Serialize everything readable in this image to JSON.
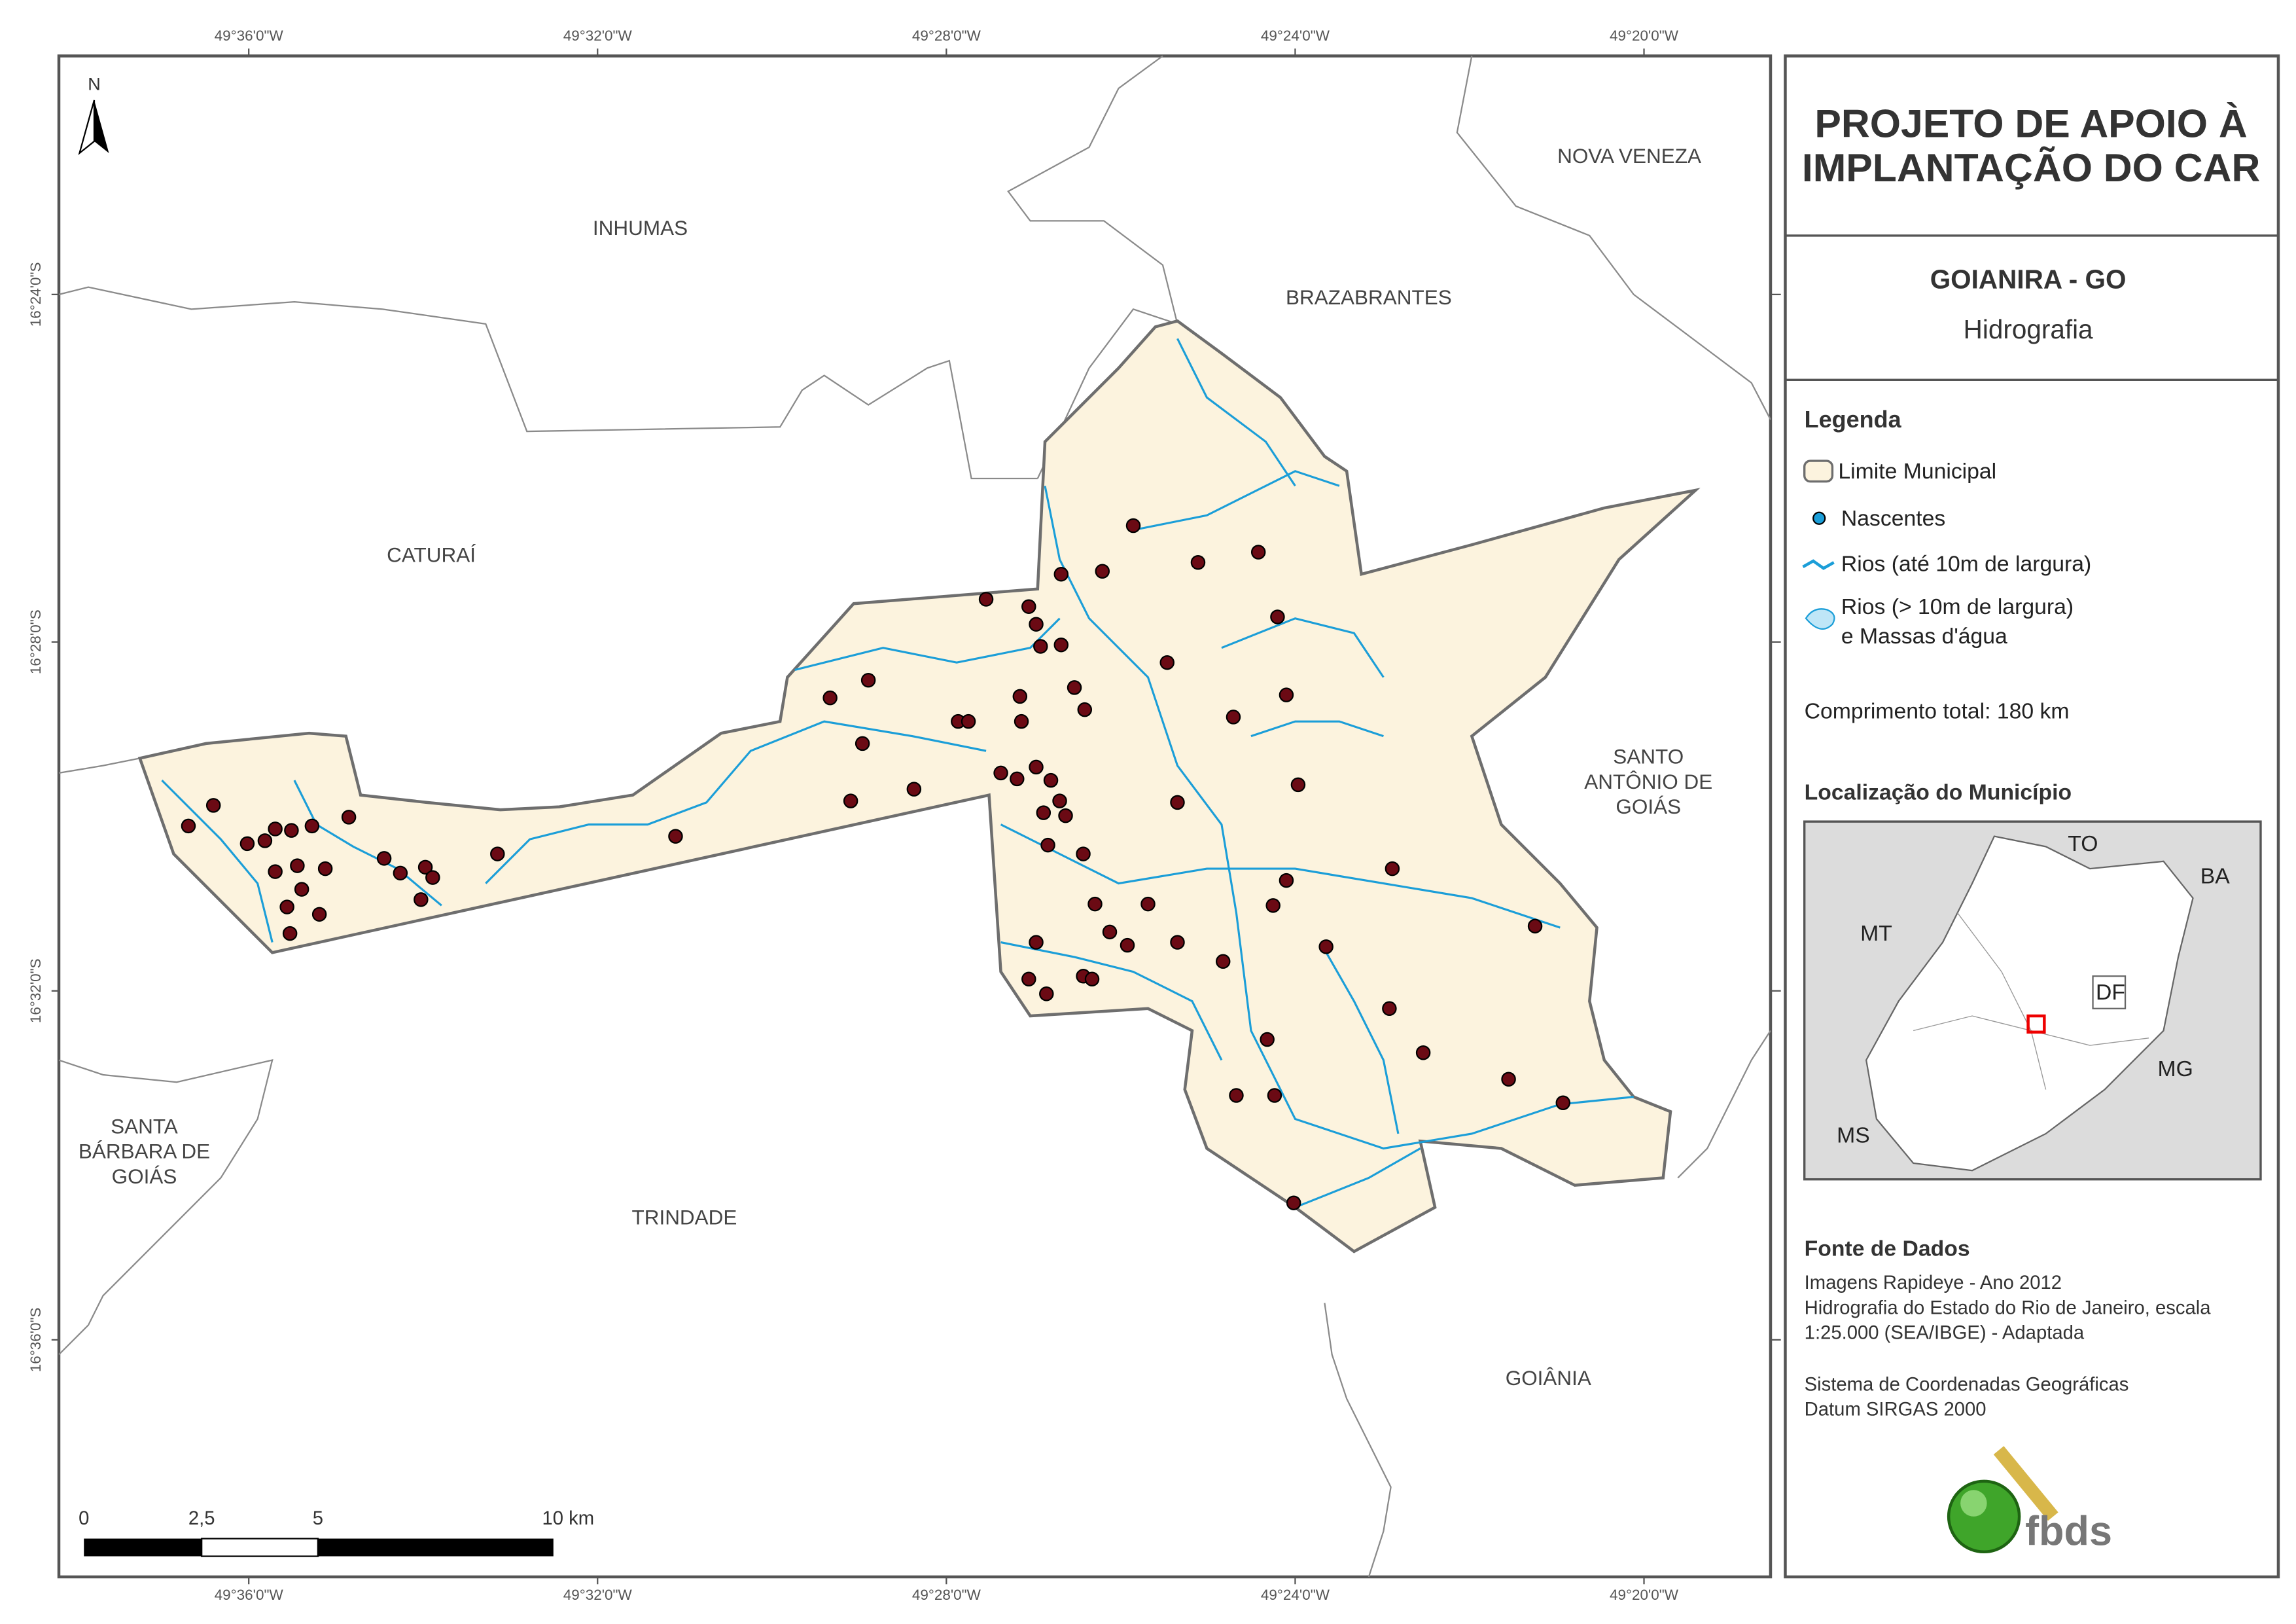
{
  "map": {
    "lon_ticks": [
      "49°36'0\"W",
      "49°32'0\"W",
      "49°28'0\"W",
      "49°24'0\"W",
      "49°20'0\"W"
    ],
    "lat_ticks": [
      "16°24'0\"S",
      "16°28'0\"S",
      "16°32'0\"S",
      "16°36'0\"S"
    ],
    "places": [
      [
        "INHUMAS"
      ],
      [
        "NOVA VENEZA"
      ],
      [
        "BRAZABRANTES"
      ],
      [
        "CATURAÍ"
      ],
      [
        "SANTO",
        "ANTÔNIO DE",
        "GOIÁS"
      ],
      [
        "SANTA",
        "BÁRBARA DE",
        "GOIÁS"
      ],
      [
        "TRINDADE"
      ],
      [
        "GOIÂNIA"
      ]
    ],
    "north": "N",
    "scale": [
      "0",
      "2,5",
      "5",
      "10 km"
    ]
  },
  "panel": {
    "title": [
      "PROJETO DE APOIO À",
      "IMPLANTAÇÃO DO CAR"
    ],
    "municipality": "GOIANIRA - GO",
    "theme": "Hidrografia",
    "legend": {
      "title": "Legenda",
      "items": [
        [
          "Limite Municipal"
        ],
        [
          "Nascentes"
        ],
        [
          "Rios (até 10m de largura)"
        ],
        [
          "Rios (> 10m de largura)",
          "e Massas d'água"
        ]
      ]
    },
    "total": "Comprimento total:  180 km",
    "location": {
      "title": "Localização do Município",
      "labels": [
        "TO",
        "BA",
        "MT",
        "DF",
        "MG",
        "MS"
      ]
    },
    "sources": {
      "title": "Fonte de Dados",
      "lines": [
        "Imagens Rapideye - Ano 2012",
        "Hidrografia do Estado do Rio de Janeiro, escala",
        "1:25.000 (SEA/IBGE) - Adaptada",
        "Sistema de Coordenadas Geográficas",
        "Datum SIRGAS 2000"
      ]
    },
    "logo": "fbds"
  }
}
